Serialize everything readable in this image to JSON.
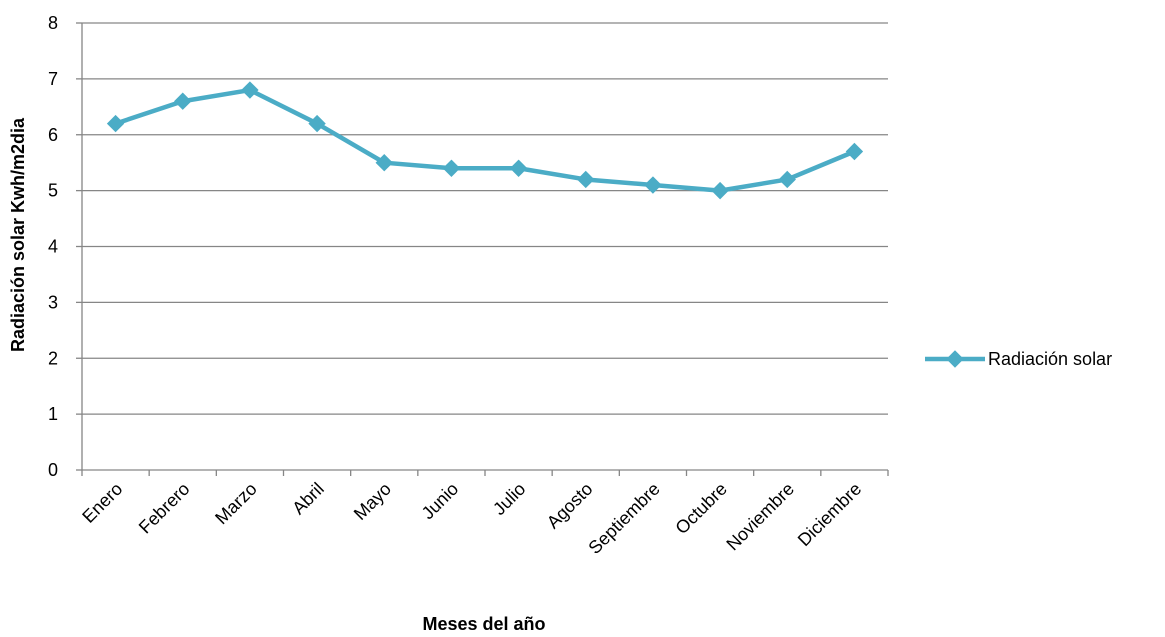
{
  "chart_data": {
    "type": "line",
    "title": "",
    "xlabel": "Meses del año",
    "ylabel": "Radiación solar Kwh/m2dia",
    "categories": [
      "Enero",
      "Febrero",
      "Marzo",
      "Abril",
      "Mayo",
      "Junio",
      "Julio",
      "Agosto",
      "Septiembre",
      "Octubre",
      "Noviembre",
      "Diciembre"
    ],
    "series": [
      {
        "name": "Radiación solar",
        "values": [
          6.2,
          6.6,
          6.8,
          6.2,
          5.5,
          5.4,
          5.4,
          5.2,
          5.1,
          5.0,
          5.2,
          5.7
        ],
        "color": "#4bacc6",
        "marker": "diamond"
      }
    ],
    "ylim": [
      0,
      8
    ],
    "yticks": [
      0,
      1,
      2,
      3,
      4,
      5,
      6,
      7,
      8
    ],
    "grid": true,
    "legend_position": "right",
    "colors": {
      "gridline": "#868686",
      "axis": "#868686"
    }
  }
}
